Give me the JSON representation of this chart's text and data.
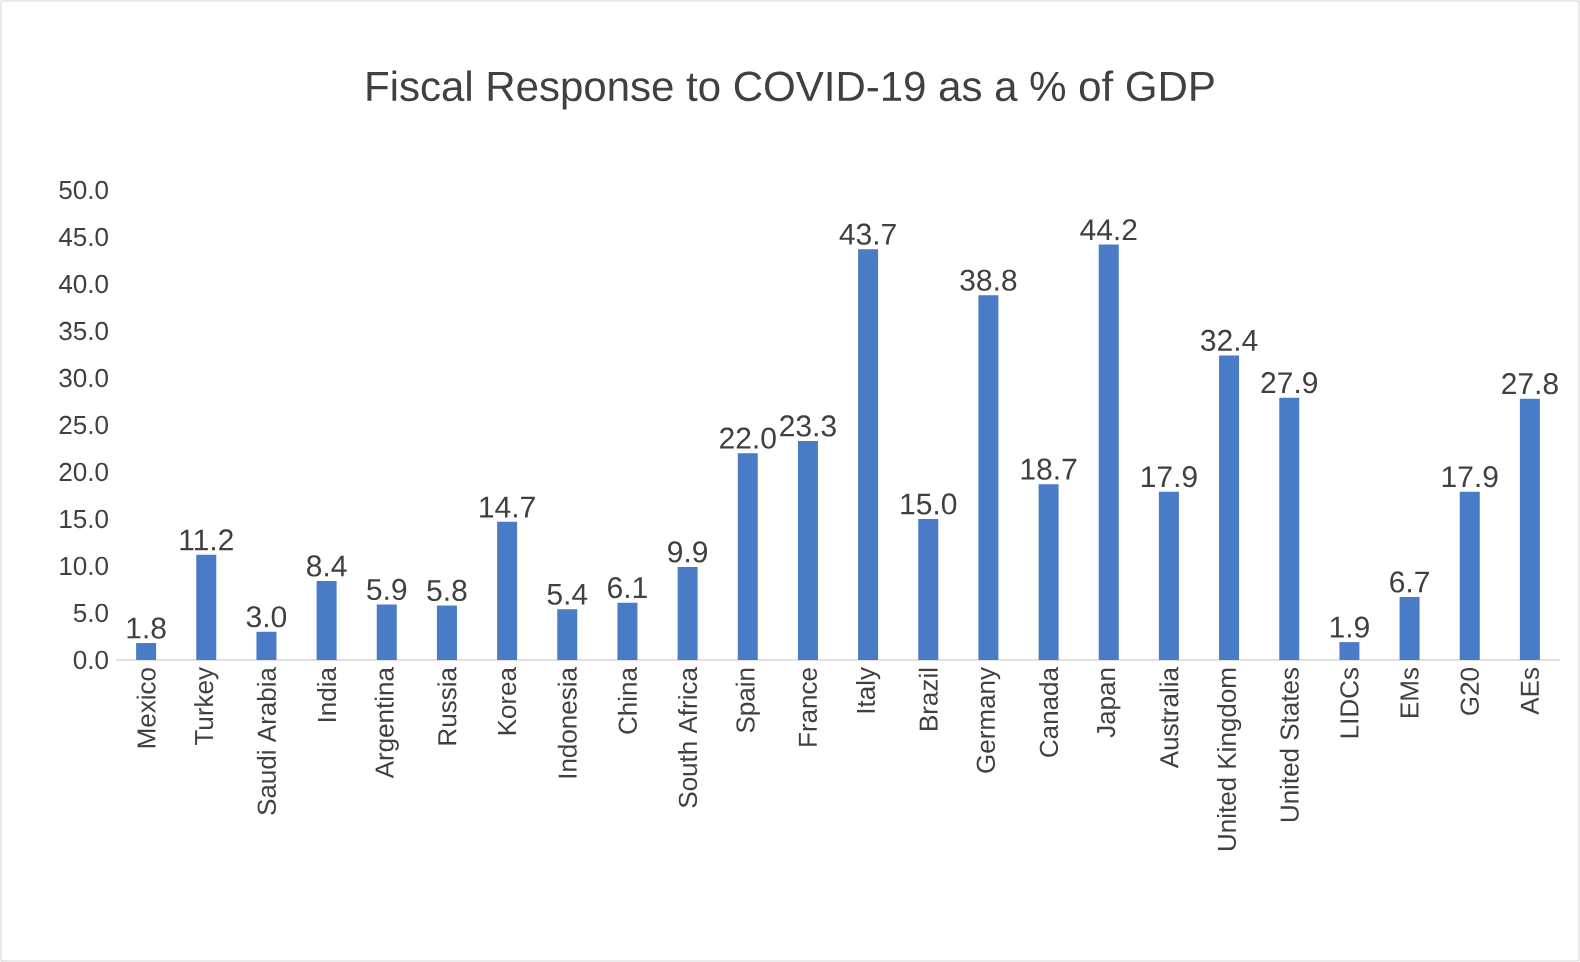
{
  "chart_data": {
    "type": "bar",
    "title": "Fiscal Response to COVID-19 as a % of GDP",
    "categories": [
      "Mexico",
      "Turkey",
      "Saudi Arabia",
      "India",
      "Argentina",
      "Russia",
      "Korea",
      "Indonesia",
      "China",
      "South Africa",
      "Spain",
      "France",
      "Italy",
      "Brazil",
      "Germany",
      "Canada",
      "Japan",
      "Australia",
      "United Kingdom",
      "United States",
      "LIDCs",
      "EMs",
      "G20",
      "AEs"
    ],
    "values": [
      1.8,
      11.2,
      3.0,
      8.4,
      5.9,
      5.8,
      14.7,
      5.4,
      6.1,
      9.9,
      22.0,
      23.3,
      43.7,
      15.0,
      38.8,
      18.7,
      44.2,
      17.9,
      32.4,
      27.9,
      1.9,
      6.7,
      17.9,
      27.8
    ],
    "value_labels": [
      "1.8",
      "11.2",
      "3.0",
      "8.4",
      "5.9",
      "5.8",
      "14.7",
      "5.4",
      "6.1",
      "9.9",
      "22.0",
      "23.3",
      "43.7",
      "15.0",
      "38.8",
      "18.7",
      "44.2",
      "17.9",
      "32.4",
      "27.9",
      "1.9",
      "6.7",
      "17.9",
      "27.8"
    ],
    "color": "#4a7bc6",
    "ylim": [
      0,
      50
    ],
    "yticks": [
      {
        "value": 0,
        "label": "0.0"
      },
      {
        "value": 5,
        "label": "5.0"
      },
      {
        "value": 10,
        "label": "10.0"
      },
      {
        "value": 15,
        "label": "15.0"
      },
      {
        "value": 20,
        "label": "20.0"
      },
      {
        "value": 25,
        "label": "25.0"
      },
      {
        "value": 30,
        "label": "30.0"
      },
      {
        "value": 35,
        "label": "35.0"
      },
      {
        "value": 40,
        "label": "40.0"
      },
      {
        "value": 45,
        "label": "45.0"
      },
      {
        "value": 50,
        "label": "50.0"
      }
    ],
    "grid": false
  }
}
